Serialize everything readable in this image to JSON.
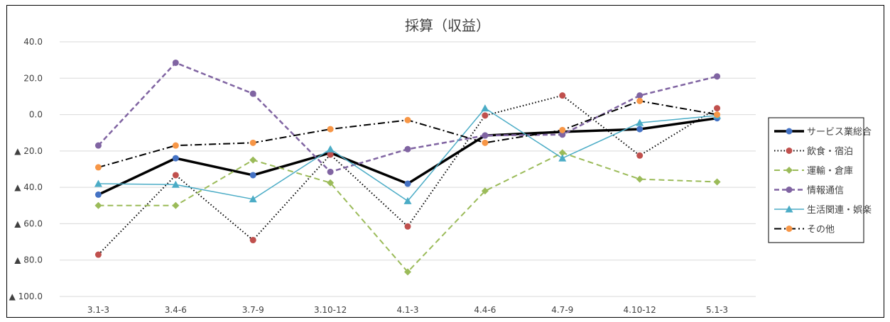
{
  "chart_data": {
    "type": "line",
    "title": "採算（収益）",
    "categories": [
      "3.1-3",
      "3.4-6",
      "3.7-9",
      "3.10-12",
      "4.1-3",
      "4.4-6",
      "4.7-9",
      "4.10-12",
      "5.1-3"
    ],
    "ylim": [
      -100,
      40
    ],
    "yticks": [
      {
        "value": 40,
        "label": "40.0"
      },
      {
        "value": 20,
        "label": "20.0"
      },
      {
        "value": 0,
        "label": "0.0"
      },
      {
        "value": -20,
        "label": "▲ 20.0"
      },
      {
        "value": -40,
        "label": "▲ 40.0"
      },
      {
        "value": -60,
        "label": "▲ 60.0"
      },
      {
        "value": -80,
        "label": "▲ 80.0"
      },
      {
        "value": -100,
        "label": "▲ 100.0"
      }
    ],
    "grid": true,
    "legend_position": "right",
    "series": [
      {
        "name": "サービス業総合",
        "color": "#000000",
        "line": "#000000",
        "dash": "",
        "width": 3.5,
        "marker": "circle",
        "marker_fill": "#4472C4",
        "values": [
          -44.0,
          -24.0,
          -33.3,
          -21.0,
          -38.0,
          -11.5,
          -9.5,
          -8.0,
          -2.0
        ]
      },
      {
        "name": "飲食・宿泊",
        "color": "#C0504D",
        "line": "#000000",
        "dash": "1.5,3",
        "width": 2,
        "marker": "circle",
        "marker_fill": "#C0504D",
        "values": [
          -77.0,
          -33.3,
          -69.0,
          -22.0,
          -61.5,
          -0.5,
          10.5,
          -22.5,
          3.5
        ]
      },
      {
        "name": "運輸・倉庫",
        "color": "#9BBB59",
        "line": "#9BBB59",
        "dash": "8,5",
        "width": 2,
        "marker": "diamond",
        "marker_fill": "#9BBB59",
        "values": [
          -50.0,
          -50.0,
          -25.0,
          -37.5,
          -86.5,
          -42.0,
          -21.0,
          -35.5,
          -37.0
        ]
      },
      {
        "name": "情報通信",
        "color": "#8064A2",
        "line": "#8064A2",
        "dash": "7,4",
        "width": 2.5,
        "marker": "circle",
        "marker_fill": "#8064A2",
        "values": [
          -17.0,
          28.5,
          11.5,
          -31.5,
          -19.0,
          -11.5,
          -11.0,
          10.5,
          21.0
        ]
      },
      {
        "name": "生活関連・娯楽",
        "color": "#4BACC6",
        "line": "#4BACC6",
        "dash": "",
        "width": 1.5,
        "marker": "triangle",
        "marker_fill": "#4BACC6",
        "values": [
          -38.0,
          -38.5,
          -46.5,
          -19.0,
          -47.5,
          3.5,
          -24.0,
          -4.5,
          -0.5
        ]
      },
      {
        "name": "その他",
        "color": "#F79646",
        "line": "#000000",
        "dash": "10,4,2,4",
        "width": 2,
        "marker": "circle",
        "marker_fill": "#F79646",
        "values": [
          -29.0,
          -17.0,
          -15.5,
          -8.0,
          -3.0,
          -15.5,
          -8.5,
          7.5,
          0.0
        ]
      }
    ]
  }
}
